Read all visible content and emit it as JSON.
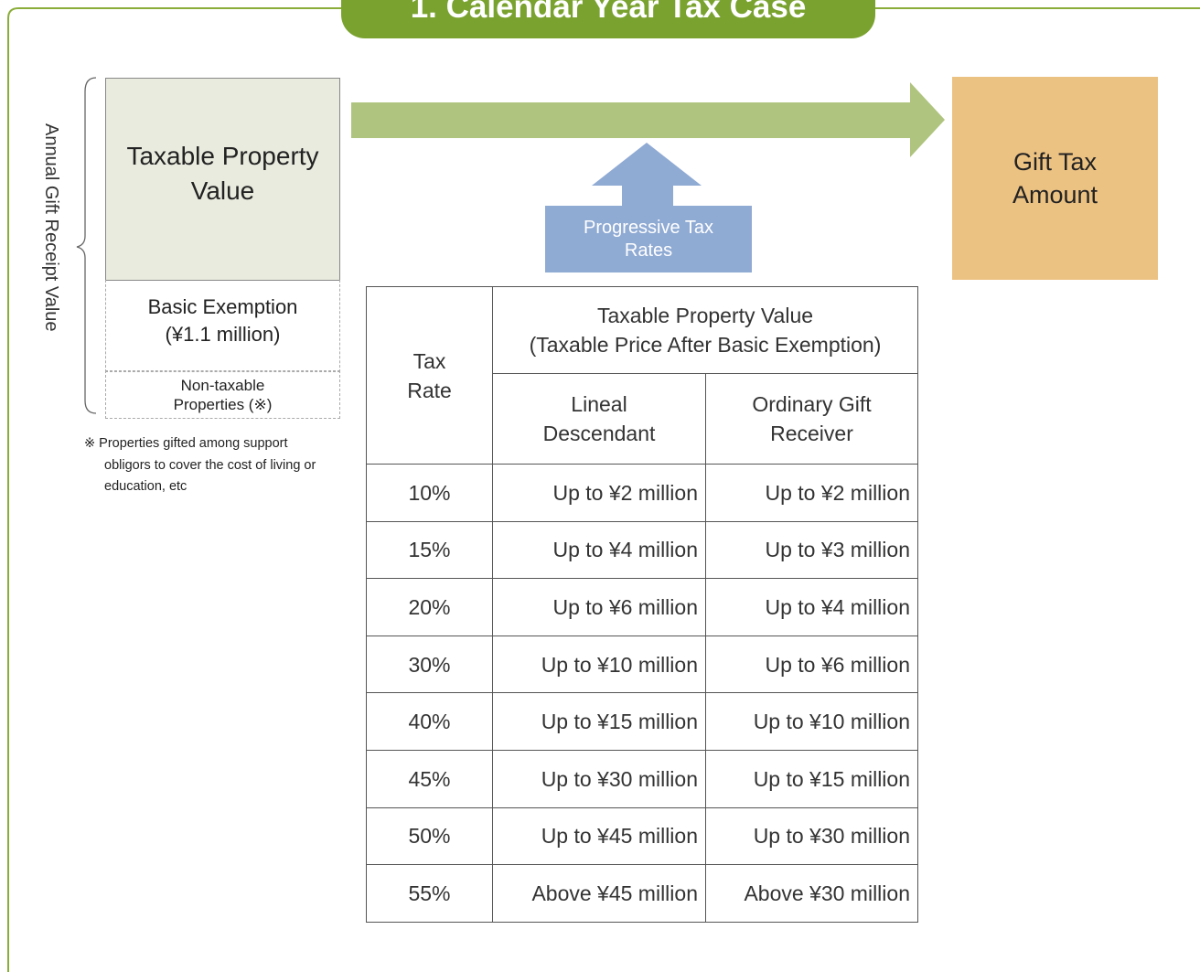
{
  "title": "1. Calendar Year Tax Case",
  "side_label": "Annual Gift Receipt Value",
  "boxes": {
    "taxable": [
      "Taxable Property",
      "Value"
    ],
    "exemption": [
      "Basic Exemption",
      "(¥1.1 million)"
    ],
    "non_taxable": [
      "Non-taxable",
      "Properties (※)"
    ],
    "gift_tax": [
      "Gift Tax",
      "Amount"
    ],
    "progressive": [
      "Progressive Tax",
      "Rates"
    ]
  },
  "note": "※ Properties gifted among support obligors to cover the cost of living or education, etc",
  "table": {
    "header": {
      "rate": [
        "Tax",
        "Rate"
      ],
      "group": [
        "Taxable Property Value",
        "(Taxable Price After Basic Exemption)"
      ],
      "lineal": [
        "Lineal",
        "Descendant"
      ],
      "ordinary": [
        "Ordinary Gift",
        "Receiver"
      ]
    },
    "rows": [
      [
        "10%",
        "Up to ¥2 million",
        "Up to ¥2 million"
      ],
      [
        "15%",
        "Up to ¥4 million",
        "Up to ¥3 million"
      ],
      [
        "20%",
        "Up to ¥6 million",
        "Up to ¥4 million"
      ],
      [
        "30%",
        "Up to ¥10 million",
        "Up to ¥6 million"
      ],
      [
        "40%",
        "Up to ¥15 million",
        "Up to ¥10 million"
      ],
      [
        "45%",
        "Up to ¥30 million",
        "Up to ¥15 million"
      ],
      [
        "50%",
        "Up to ¥45 million",
        "Up to ¥30 million"
      ],
      [
        "55%",
        "Above ¥45 million",
        "Above ¥30 million"
      ]
    ]
  }
}
